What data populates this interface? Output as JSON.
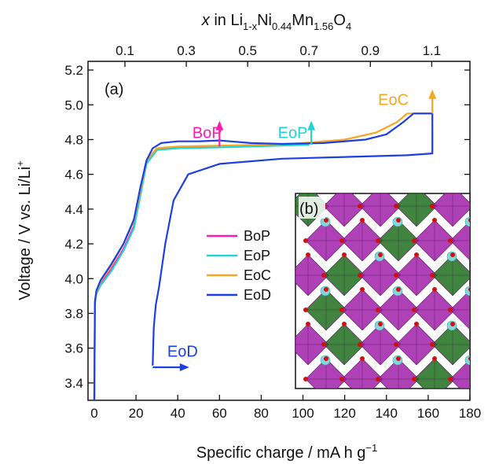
{
  "chart_data": {
    "type": "line",
    "panel_label": "(a)",
    "inset_label": "(b)",
    "xlabel": {
      "main": "Specific charge / mA h g",
      "sup": "−1"
    },
    "ylabel": {
      "main": "Voltage / V vs. Li/Li",
      "sup": "+"
    },
    "top_axis_label": {
      "x": "x",
      "pre": " in Li",
      "sub1": "1-x",
      "mid1": "Ni",
      "sub2": "0.44",
      "mid2": "Mn",
      "sub3": "1.56",
      "mid3": "O",
      "sub4": "4"
    },
    "xlim": [
      -3,
      180
    ],
    "ylim": [
      3.3,
      5.25
    ],
    "x_ticks": [
      0,
      20,
      40,
      60,
      80,
      100,
      120,
      140,
      160,
      180
    ],
    "y_ticks": [
      3.4,
      3.6,
      3.8,
      4.0,
      4.2,
      4.4,
      4.6,
      4.8,
      5.0,
      5.2
    ],
    "top_ticks": [
      {
        "label": "0.1",
        "x": 14.7
      },
      {
        "label": "0.3",
        "x": 44.1
      },
      {
        "label": "0.5",
        "x": 73.5
      },
      {
        "label": "0.7",
        "x": 102.9
      },
      {
        "label": "0.9",
        "x": 132.3
      },
      {
        "label": "1.1",
        "x": 161.7
      }
    ],
    "series": [
      {
        "name": "BoP",
        "color": "#ff1ab3",
        "x": [
          0,
          0.3,
          1,
          3,
          8,
          14,
          19,
          22,
          25,
          30,
          40,
          58
        ],
        "y": [
          3.3,
          3.85,
          3.92,
          3.97,
          4.05,
          4.17,
          4.3,
          4.48,
          4.66,
          4.74,
          4.755,
          4.755
        ]
      },
      {
        "name": "EoP",
        "color": "#22d3d3",
        "x": [
          0,
          0.3,
          1,
          3,
          8,
          14,
          19,
          22,
          25,
          30,
          40,
          60,
          80,
          103
        ],
        "y": [
          3.3,
          3.85,
          3.91,
          3.96,
          4.04,
          4.16,
          4.29,
          4.47,
          4.66,
          4.74,
          4.75,
          4.755,
          4.762,
          4.77
        ]
      },
      {
        "name": "EoC",
        "color": "#f5a623",
        "x": [
          0,
          0.3,
          1,
          3,
          8,
          14,
          19,
          22,
          25,
          30,
          40,
          60,
          80,
          100,
          120,
          135,
          145,
          150,
          162
        ],
        "y": [
          3.3,
          3.86,
          3.92,
          3.98,
          4.07,
          4.2,
          4.33,
          4.5,
          4.68,
          4.75,
          4.76,
          4.765,
          4.77,
          4.78,
          4.8,
          4.84,
          4.9,
          4.95,
          4.95
        ]
      },
      {
        "name": "EoD",
        "color": "#1b3fe0",
        "x": [
          0,
          0.3,
          1,
          3,
          8,
          14,
          19,
          22,
          25,
          28,
          32,
          40,
          50,
          60,
          65,
          75,
          90,
          110,
          130,
          140,
          148,
          153,
          162,
          162,
          150,
          120,
          90,
          60,
          45,
          38,
          34,
          31,
          29.5,
          28.5,
          28
        ],
        "y": [
          3.3,
          3.87,
          3.93,
          3.99,
          4.08,
          4.2,
          4.34,
          4.52,
          4.68,
          4.75,
          4.78,
          4.79,
          4.79,
          4.795,
          4.79,
          4.78,
          4.775,
          4.78,
          4.8,
          4.83,
          4.9,
          4.95,
          4.95,
          4.72,
          4.71,
          4.7,
          4.69,
          4.66,
          4.6,
          4.45,
          4.2,
          3.95,
          3.85,
          3.72,
          3.5
        ]
      }
    ],
    "legend": {
      "position": "center-left",
      "entries": [
        "BoP",
        "EoP",
        "EoC",
        "EoD"
      ]
    },
    "annotations": [
      {
        "text": "BoP",
        "color": "#ff1ab3",
        "x": 47,
        "y": 4.81,
        "arrow": "up",
        "arrow_x": 60,
        "arrow_y0": 4.76,
        "arrow_y1": 4.89
      },
      {
        "text": "EoP",
        "color": "#22d3d3",
        "x": 88,
        "y": 4.81,
        "arrow": "up",
        "arrow_x": 104,
        "arrow_y0": 4.77,
        "arrow_y1": 4.89
      },
      {
        "text": "EoC",
        "color": "#f5a623",
        "x": 136,
        "y": 5.0,
        "arrow": "up",
        "arrow_x": 162,
        "arrow_y0": 4.95,
        "arrow_y1": 5.07
      },
      {
        "text": "EoD",
        "color": "#1b3fe0",
        "x": 35,
        "y": 3.55,
        "arrow": "right",
        "arrow_y": 3.49,
        "arrow_x0": 28,
        "arrow_x1": 44
      }
    ],
    "inset": {
      "description_type": "crystal-structure",
      "octahedron_colors": [
        "#a020a8",
        "#1f6e1f"
      ],
      "atom_colors": [
        "#7fd8e0",
        "#d01010"
      ]
    }
  }
}
